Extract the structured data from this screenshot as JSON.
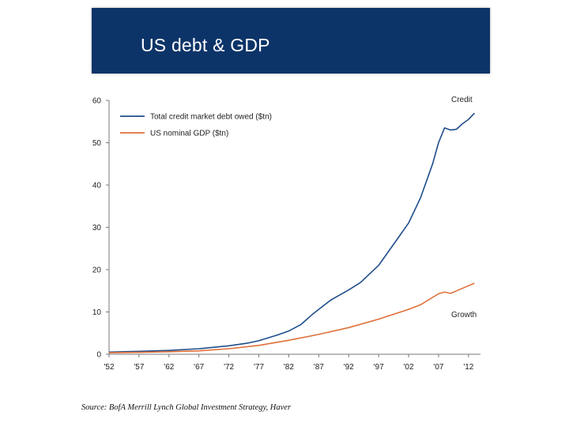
{
  "slide": {
    "title": "US debt & GDP",
    "source": "Source: BofA Merrill Lynch Global Investment Strategy, Haver"
  },
  "colors": {
    "banner": "#0d3468",
    "credit_line": "#1f4e8c",
    "gdp_line": "#e0703a"
  },
  "chart_data": {
    "type": "line",
    "title": "",
    "xlabel": "",
    "ylabel": "",
    "xlim": [
      1952,
      2014
    ],
    "ylim": [
      0,
      60
    ],
    "y_ticks": [
      0,
      10,
      20,
      30,
      40,
      50,
      60
    ],
    "x_ticks": [
      {
        "value": 1952,
        "label": "'52"
      },
      {
        "value": 1957,
        "label": "'57"
      },
      {
        "value": 1962,
        "label": "'62"
      },
      {
        "value": 1967,
        "label": "'67"
      },
      {
        "value": 1972,
        "label": "'72"
      },
      {
        "value": 1977,
        "label": "'77"
      },
      {
        "value": 1982,
        "label": "'82"
      },
      {
        "value": 1987,
        "label": "'87"
      },
      {
        "value": 1992,
        "label": "'92"
      },
      {
        "value": 1997,
        "label": "'97"
      },
      {
        "value": 2002,
        "label": "'02"
      },
      {
        "value": 2007,
        "label": "'07"
      },
      {
        "value": 2012,
        "label": "'12"
      }
    ],
    "grid": false,
    "legend": "top-left",
    "annotations": [
      {
        "text": "Credit",
        "series": 0
      },
      {
        "text": "Growth",
        "series": 1
      }
    ],
    "series": [
      {
        "name": "Total credit market debt owed ($tn)",
        "color": "#1f4e8c",
        "x": [
          1952,
          1957,
          1962,
          1967,
          1972,
          1975,
          1977,
          1980,
          1982,
          1984,
          1986,
          1987,
          1989,
          1990,
          1992,
          1994,
          1997,
          2000,
          2002,
          2004,
          2006,
          2007,
          2008,
          2009,
          2010,
          2011,
          2012,
          2013
        ],
        "y": [
          0.5,
          0.7,
          0.9,
          1.3,
          2.0,
          2.6,
          3.2,
          4.5,
          5.5,
          7.0,
          9.5,
          10.6,
          12.8,
          13.6,
          15.2,
          17.0,
          21.0,
          27.0,
          31.0,
          37.0,
          45.0,
          50.0,
          53.5,
          53.0,
          53.2,
          54.5,
          55.5,
          57.0
        ]
      },
      {
        "name": "US nominal GDP ($tn)",
        "color": "#e0703a",
        "x": [
          1952,
          1957,
          1962,
          1967,
          1972,
          1977,
          1982,
          1987,
          1992,
          1997,
          2002,
          2004,
          2007,
          2008,
          2009,
          2010,
          2012,
          2013
        ],
        "y": [
          0.35,
          0.45,
          0.6,
          0.8,
          1.3,
          2.1,
          3.3,
          4.7,
          6.3,
          8.3,
          10.6,
          11.7,
          14.3,
          14.7,
          14.4,
          15.0,
          16.2,
          16.8
        ]
      }
    ]
  }
}
